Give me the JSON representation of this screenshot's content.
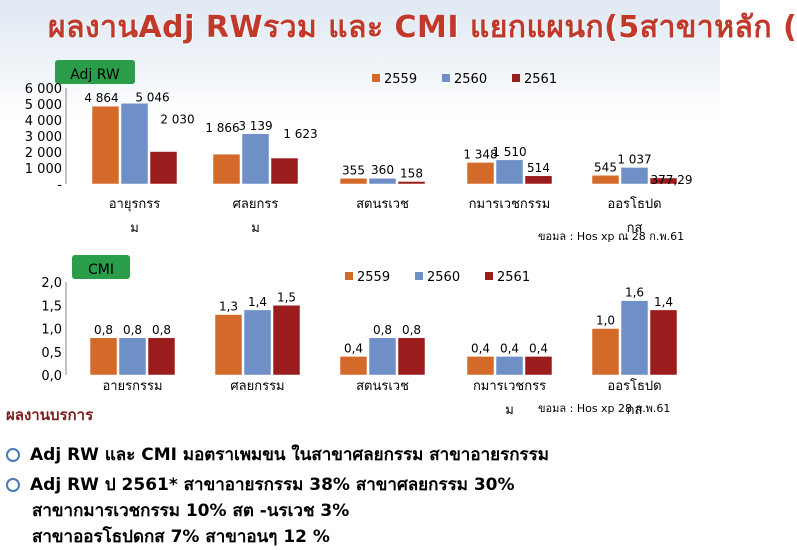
{
  "title": "ผลงานAdj RWรวม และ CMI แยกแผนก(5สาขาหลัก (",
  "colors": {
    "s2559": "#d46a2a",
    "s2560": "#6f8fc7",
    "s2561": "#9b1c1c",
    "badge": "#2a9d4a",
    "title": "#c0392b"
  },
  "chart_data": [
    {
      "type": "bar",
      "title": "Adj RW",
      "categories": [
        [
          "อายุรกรร",
          "ม"
        ],
        [
          "ศลยกรร",
          "ม"
        ],
        [
          "สตนรเวช"
        ],
        [
          "กมารเวชกรรม"
        ],
        [
          "ออรโธปด",
          "กส"
        ]
      ],
      "series": [
        {
          "name": "2559",
          "values": [
            4864,
            1866,
            355,
            1348,
            545
          ],
          "labels": [
            "4 864",
            "1 866",
            "355",
            "1 348",
            "545"
          ]
        },
        {
          "name": "2560",
          "values": [
            5046,
            3139,
            360,
            1510,
            1037
          ],
          "labels": [
            "5 046",
            "3 139",
            "360",
            "1 510",
            "1 037"
          ]
        },
        {
          "name": "2561",
          "values": [
            2030,
            1623,
            158,
            514,
            377.29
          ],
          "labels": [
            "2 030",
            "1 623",
            "158",
            "514",
            "377,29"
          ]
        }
      ],
      "yticks": [
        "6 000",
        "5 000",
        "4 000",
        "3 000",
        "2 000",
        "1 000",
        "-"
      ],
      "ylim": [
        0,
        6000
      ],
      "legend": "top-right",
      "source": "ขอมล : Hos xp ณ 28 ก.พ.61"
    },
    {
      "type": "bar",
      "title": "CMI",
      "categories": [
        [
          "อายรกรรม"
        ],
        [
          "ศลยกรรม"
        ],
        [
          "สตนรเวช"
        ],
        [
          "กมารเวชกรร",
          "ม"
        ],
        [
          "ออรโธปด",
          "กส"
        ]
      ],
      "series": [
        {
          "name": "2559",
          "values": [
            0.8,
            1.3,
            0.4,
            0.4,
            1.0
          ],
          "labels": [
            "0,8",
            "1,3",
            "0,4",
            "0,4",
            "1,0"
          ]
        },
        {
          "name": "2560",
          "values": [
            0.8,
            1.4,
            0.8,
            0.4,
            1.6
          ],
          "labels": [
            "0,8",
            "1,4",
            "0,8",
            "0,4",
            "1,6"
          ]
        },
        {
          "name": "2561",
          "values": [
            0.8,
            1.5,
            0.8,
            0.4,
            1.4
          ],
          "labels": [
            "0,8",
            "1,5",
            "0,8",
            "0,4",
            "1,4"
          ]
        }
      ],
      "yticks": [
        "2,0",
        "1,5",
        "1,0",
        "0,5",
        "0,0"
      ],
      "ylim": [
        0,
        2
      ],
      "legend": "top-right",
      "source": "ขอมล : Hos xp 28 ก.พ.61"
    }
  ],
  "summary": {
    "heading": "ผลงานบรการ",
    "bullets": [
      "Adj RW และ CMI มอตราเพมขน            ในสาขาศลยกรรม สาขาอายรกรรม",
      "Adj RW ป 2561* สาขาอายรกรรม 38% สาขาศลยกรรม 30%"
    ],
    "continuation": [
      "สาขากมารเวชกรรม 10% สต -นรเวช 3%",
      "สาขาออรโธปดกส 7% สาขาอนๆ 12 %"
    ]
  }
}
